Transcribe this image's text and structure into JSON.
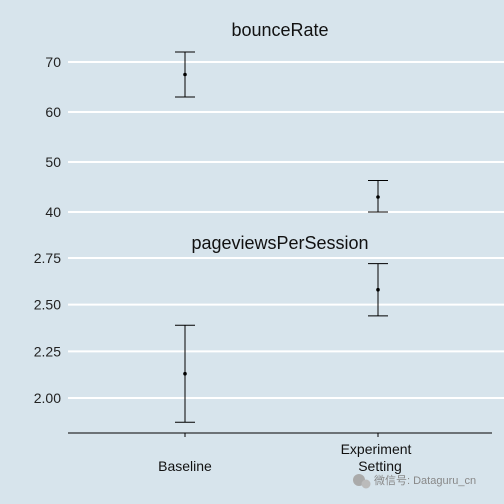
{
  "chart_data": [
    {
      "type": "errorbar",
      "title": "bounceRate",
      "categories": [
        "Baseline",
        "Experiment"
      ],
      "yticks": [
        40,
        50,
        60,
        70
      ],
      "points": [
        {
          "category": "Baseline",
          "mean": 67.5,
          "lower": 63.0,
          "upper": 72.0
        },
        {
          "category": "Experiment",
          "mean": 43.0,
          "lower": 40.0,
          "upper": 46.3
        }
      ]
    },
    {
      "type": "errorbar",
      "title": "pageviewsPerSession",
      "categories": [
        "Baseline",
        "Experiment"
      ],
      "yticks": [
        2.0,
        2.25,
        2.5,
        2.75
      ],
      "ytick_labels": [
        "2.00",
        "2.25",
        "2.50",
        "2.75"
      ],
      "points": [
        {
          "category": "Baseline",
          "mean": 2.13,
          "lower": 1.87,
          "upper": 2.39
        },
        {
          "category": "Experiment",
          "mean": 2.58,
          "lower": 2.44,
          "upper": 2.72
        }
      ]
    }
  ],
  "x_labels": [
    {
      "lines": [
        "Baseline"
      ]
    },
    {
      "lines": [
        "Experiment",
        "Setting"
      ]
    }
  ],
  "watermark": "微信号: Dataguru_cn",
  "colors": {
    "background": "#d7e4ec",
    "grid": "#ffffff",
    "marks": "#000000"
  }
}
